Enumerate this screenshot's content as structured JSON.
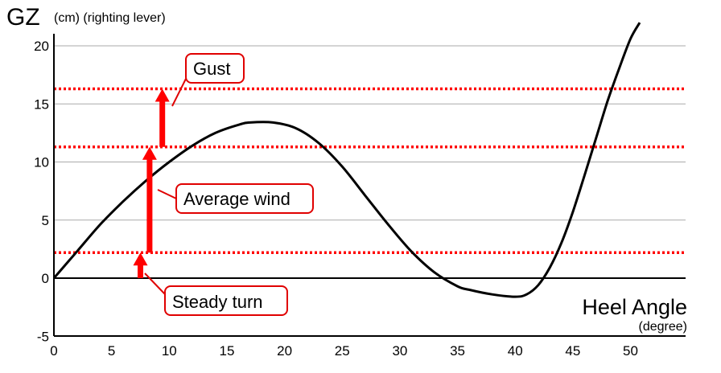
{
  "chart_data": {
    "type": "line",
    "ylabel_main": "GZ",
    "ylabel_sub": "(cm) (righting lever)",
    "xlabel_main": "Heel Angle",
    "xlabel_sub": "(degree)",
    "xlim": [
      0,
      55
    ],
    "ylim": [
      -5,
      22
    ],
    "xticks": [
      0,
      5,
      10,
      15,
      20,
      25,
      30,
      35,
      40,
      45,
      50
    ],
    "yticks": [
      -5,
      0,
      5,
      10,
      15,
      20
    ],
    "grid": true,
    "curve": {
      "x": [
        0,
        2,
        4,
        6,
        8,
        10,
        12,
        14,
        16,
        17,
        19,
        21,
        23,
        25,
        27,
        29,
        31,
        33,
        35,
        36,
        38,
        40,
        41,
        42,
        43,
        44,
        45,
        46,
        47,
        48,
        49,
        50,
        50.8
      ],
      "y": [
        0,
        2.3,
        4.6,
        6.6,
        8.4,
        10.0,
        11.4,
        12.5,
        13.2,
        13.4,
        13.4,
        12.9,
        11.6,
        9.6,
        7.1,
        4.6,
        2.3,
        0.5,
        -0.7,
        -1.0,
        -1.4,
        -1.6,
        -1.4,
        -0.6,
        0.9,
        3.0,
        5.7,
        8.8,
        12.0,
        15.2,
        18.0,
        20.6,
        22.0
      ]
    },
    "reference_lines": [
      {
        "y": 2.2,
        "color": "#ff0000",
        "style": "dotted"
      },
      {
        "y": 11.3,
        "color": "#ff0000",
        "style": "dotted"
      },
      {
        "y": 16.3,
        "color": "#ff0000",
        "style": "dotted"
      }
    ],
    "arrows": [
      {
        "x": 7.5,
        "from": 0,
        "to": 2.2
      },
      {
        "x": 8.3,
        "from": 2.2,
        "to": 11.3
      },
      {
        "x": 9.4,
        "from": 11.3,
        "to": 16.3
      }
    ],
    "annotations": [
      {
        "text": "Gust"
      },
      {
        "text": "Average wind"
      },
      {
        "text": "Steady turn"
      }
    ],
    "colors": {
      "curve": "#000000",
      "accent": "#ff0000",
      "grid": "#aaaaaa"
    }
  }
}
